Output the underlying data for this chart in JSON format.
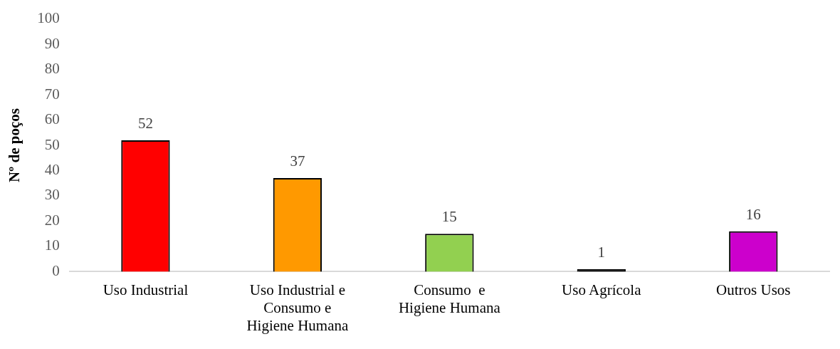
{
  "chart_data": {
    "type": "bar",
    "ylabel": "Nº de poços",
    "categories": [
      "Uso Industrial",
      "Uso Industrial e Consumo e Higiene Humana",
      "Consumo  e Higiene Humana",
      "Uso Agrícola",
      "Outros Usos"
    ],
    "values": [
      52,
      37,
      15,
      1,
      16
    ],
    "colors": [
      "#ff0000",
      "#ff9900",
      "#92d050",
      "#000000",
      "#cc00cc"
    ],
    "ylim": [
      0,
      100
    ],
    "yticks": [
      0,
      10,
      20,
      30,
      40,
      50,
      60,
      70,
      80,
      90,
      100
    ],
    "grid": false,
    "legend": false,
    "data_labels": true
  }
}
